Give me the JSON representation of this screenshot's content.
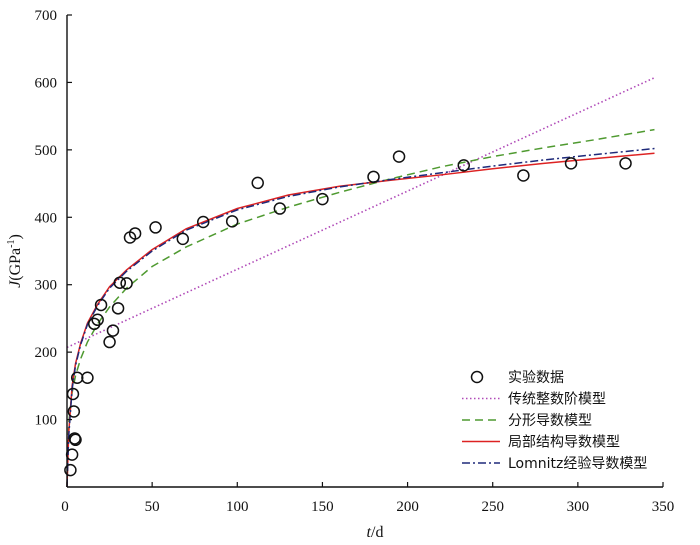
{
  "chart_data": {
    "type": "scatter",
    "title": "",
    "xlabel": {
      "italic": "t",
      "rest": "/d"
    },
    "ylabel": {
      "italic": "J",
      "rest": "(GPa",
      "sup": "-1",
      "close": ")"
    },
    "xlim": [
      0,
      350
    ],
    "ylim": [
      0,
      700
    ],
    "xticks": [
      0,
      50,
      100,
      150,
      200,
      250,
      300,
      350
    ],
    "yticks": [
      100,
      200,
      300,
      400,
      500,
      600,
      700
    ],
    "grid": false,
    "legend_position": "bottom-right",
    "series": [
      {
        "name": "实验数据",
        "kind": "markers",
        "color": "#111111",
        "x": [
          2,
          3,
          3.5,
          4,
          4.5,
          5,
          6,
          12,
          16,
          18,
          20,
          25,
          27,
          30,
          31,
          35,
          37,
          40,
          52,
          68,
          80,
          97,
          112,
          125,
          150,
          180,
          195,
          233,
          268,
          296,
          328
        ],
        "y": [
          25,
          48,
          138,
          112,
          72,
          70,
          162,
          162,
          242,
          248,
          270,
          215,
          232,
          265,
          303,
          302,
          370,
          376,
          385,
          368,
          393,
          394,
          451,
          413,
          427,
          460,
          490,
          477,
          462,
          480,
          480
        ]
      },
      {
        "name": "传统整数阶模型",
        "kind": "line",
        "style": "dotted",
        "color": "#b04ab8",
        "x": [
          0,
          345
        ],
        "y": [
          207,
          607
        ]
      },
      {
        "name": "分形导数模型",
        "kind": "line",
        "style": "dashed",
        "color": "#4f9a30",
        "x": [
          0,
          1,
          3,
          5,
          8,
          12,
          18,
          25,
          35,
          50,
          70,
          100,
          130,
          160,
          190,
          220,
          250,
          280,
          310,
          345
        ],
        "y": [
          0,
          95,
          140,
          165,
          190,
          215,
          242,
          267,
          295,
          327,
          356,
          390,
          415,
          437,
          457,
          475,
          490,
          503,
          515,
          530
        ]
      },
      {
        "name": "局部结构导数模型",
        "kind": "line",
        "style": "solid",
        "color": "#dd2222",
        "x": [
          0,
          1,
          3,
          5,
          8,
          12,
          18,
          25,
          35,
          50,
          70,
          100,
          130,
          160,
          190,
          220,
          250,
          280,
          310,
          345
        ],
        "y": [
          0,
          80,
          150,
          183,
          213,
          243,
          271,
          297,
          322,
          352,
          383,
          413,
          433,
          446,
          455,
          463,
          472,
          480,
          487,
          495
        ]
      },
      {
        "name": "Lomnitz经验导数模型",
        "kind": "line",
        "style": "dashdot",
        "color": "#1f2a7a",
        "x": [
          0,
          1,
          3,
          5,
          8,
          12,
          18,
          25,
          35,
          50,
          70,
          100,
          130,
          160,
          190,
          220,
          250,
          280,
          310,
          345
        ],
        "y": [
          0,
          75,
          145,
          180,
          211,
          241,
          269,
          295,
          320,
          350,
          381,
          411,
          431,
          445,
          456,
          466,
          476,
          485,
          493,
          502
        ]
      }
    ]
  }
}
